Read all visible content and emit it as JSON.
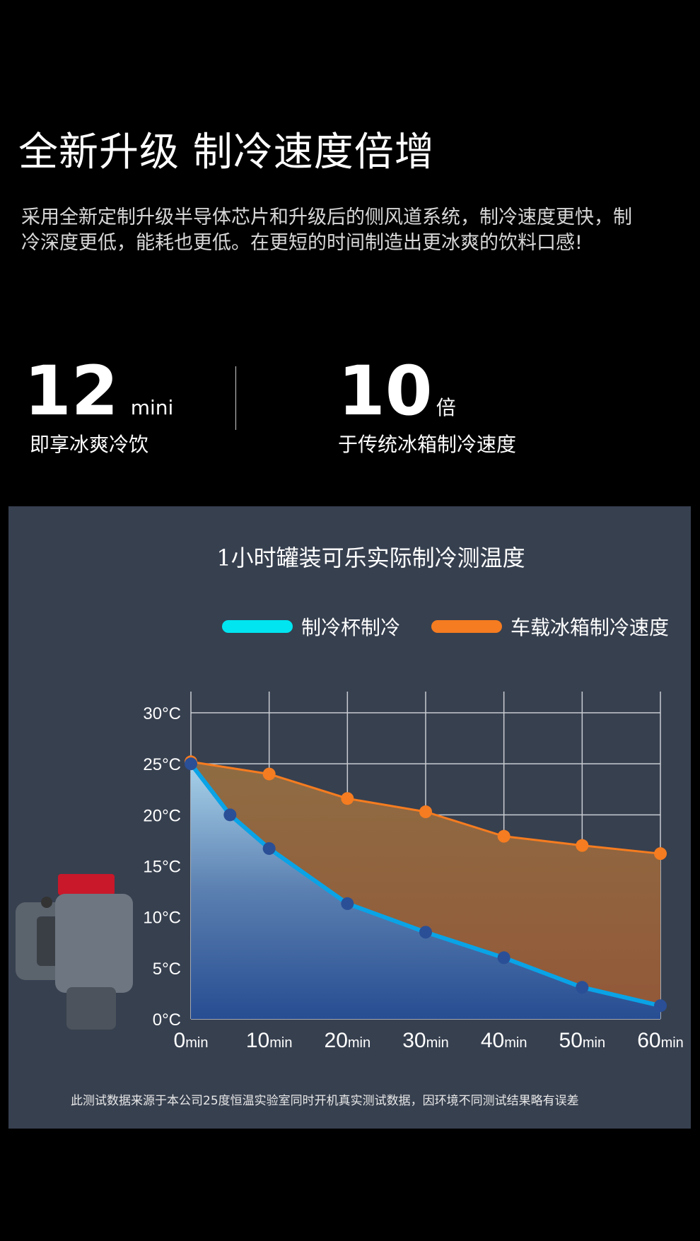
{
  "header": {
    "title": "全新升级 制冷速度倍增",
    "description": "采用全新定制升级半导体芯片和升级后的侧风道系统，制冷速度更快，制冷深度更低，能耗也更低。在更短的时间制造出更冰爽的饮料口感!"
  },
  "stats": [
    {
      "value": "12",
      "unit": "mini",
      "label": "即享冰爽冷饮"
    },
    {
      "value": "10",
      "unit": "倍",
      "label": "于传统冰箱制冷速度"
    }
  ],
  "footnote": "此测试数据来源于本公司25度恒温实验室同时开机真实测试数据，因环境不同测试结果略有误差",
  "product_image": "cup-cooler-with-cola-can",
  "chart_data": {
    "type": "area",
    "title": "1小时罐装可乐实际制冷测温度",
    "legend_position": "top",
    "grid": true,
    "ylim": [
      0,
      30
    ],
    "xlim": [
      0,
      60
    ],
    "y_ticks": [
      "0°C",
      "5°C",
      "10°C",
      "15°C",
      "20°C",
      "25°C",
      "30°C"
    ],
    "x_ticks": [
      {
        "num": "0",
        "unit": "min"
      },
      {
        "num": "10",
        "unit": "min"
      },
      {
        "num": "20",
        "unit": "min"
      },
      {
        "num": "30",
        "unit": "min"
      },
      {
        "num": "40",
        "unit": "min"
      },
      {
        "num": "50",
        "unit": "min"
      },
      {
        "num": "60",
        "unit": "min"
      }
    ],
    "series": [
      {
        "name": "制冷杯制冷",
        "color": "#00e5f0",
        "line_color": "#0aa3e6",
        "marker_color": "#2a4f96",
        "points": [
          [
            0,
            25
          ],
          [
            5,
            20
          ],
          [
            10,
            16.7
          ],
          [
            20,
            11.3
          ],
          [
            30,
            8.5
          ],
          [
            40,
            6
          ],
          [
            50,
            3.1
          ],
          [
            60,
            1.3
          ]
        ]
      },
      {
        "name": "车载冰箱制冷速度",
        "color": "#f57c20",
        "line_color": "#f57c20",
        "marker_color": "#f57c20",
        "points": [
          [
            0,
            25.2
          ],
          [
            10,
            24
          ],
          [
            20,
            21.6
          ],
          [
            30,
            20.3
          ],
          [
            40,
            17.9
          ],
          [
            50,
            17
          ],
          [
            60,
            16.2
          ]
        ]
      }
    ]
  }
}
